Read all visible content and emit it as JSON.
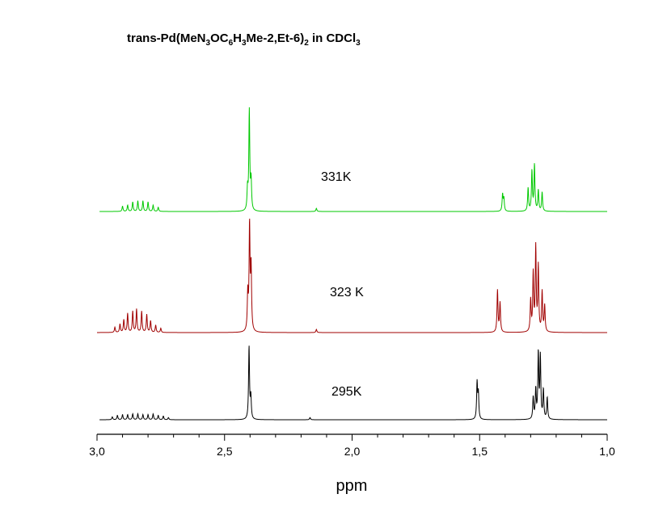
{
  "chart_data": {
    "type": "line",
    "title": {
      "parts": [
        {
          "text": "trans-Pd(MeN",
          "sub": false
        },
        {
          "text": "3",
          "sub": true
        },
        {
          "text": "OC",
          "sub": false
        },
        {
          "text": "6",
          "sub": true
        },
        {
          "text": "H",
          "sub": false
        },
        {
          "text": "3",
          "sub": true
        },
        {
          "text": "Me-2,Et-6)",
          "sub": false
        },
        {
          "text": "2",
          "sub": true
        },
        {
          "text": " in CDCl",
          "sub": false
        },
        {
          "text": "3",
          "sub": true
        }
      ]
    },
    "xlabel": "ppm",
    "xlim": [
      3.0,
      1.0
    ],
    "x_reversed": true,
    "xticks": [
      {
        "value": 3.0,
        "label": "3,0"
      },
      {
        "value": 2.5,
        "label": "2,5"
      },
      {
        "value": 2.0,
        "label": "2,0"
      },
      {
        "value": 1.5,
        "label": "1,5"
      },
      {
        "value": 1.0,
        "label": "1,0"
      }
    ],
    "minor_tick_step": 0.1,
    "grid": false,
    "series": [
      {
        "name": "331K",
        "color": "#00c800",
        "x_range": [
          2.99,
          1.0
        ],
        "peaks": [
          {
            "ppm": 2.9,
            "height": 0.05
          },
          {
            "ppm": 2.88,
            "height": 0.06
          },
          {
            "ppm": 2.86,
            "height": 0.09
          },
          {
            "ppm": 2.84,
            "height": 0.1
          },
          {
            "ppm": 2.82,
            "height": 0.1
          },
          {
            "ppm": 2.8,
            "height": 0.09
          },
          {
            "ppm": 2.78,
            "height": 0.06
          },
          {
            "ppm": 2.76,
            "height": 0.04
          },
          {
            "ppm": 2.403,
            "height": 0.95
          },
          {
            "ppm": 2.396,
            "height": 0.28
          },
          {
            "ppm": 2.41,
            "height": 0.2
          },
          {
            "ppm": 2.14,
            "height": 0.03
          },
          {
            "ppm": 1.41,
            "height": 0.16
          },
          {
            "ppm": 1.405,
            "height": 0.12
          },
          {
            "ppm": 1.31,
            "height": 0.22
          },
          {
            "ppm": 1.295,
            "height": 0.38
          },
          {
            "ppm": 1.285,
            "height": 0.44
          },
          {
            "ppm": 1.27,
            "height": 0.2
          },
          {
            "ppm": 1.255,
            "height": 0.18
          }
        ]
      },
      {
        "name": "323 K",
        "color": "#a00000",
        "x_range": [
          3.0,
          1.0
        ],
        "peaks": [
          {
            "ppm": 2.93,
            "height": 0.05
          },
          {
            "ppm": 2.91,
            "height": 0.08
          },
          {
            "ppm": 2.895,
            "height": 0.12
          },
          {
            "ppm": 2.88,
            "height": 0.18
          },
          {
            "ppm": 2.86,
            "height": 0.2
          },
          {
            "ppm": 2.845,
            "height": 0.22
          },
          {
            "ppm": 2.825,
            "height": 0.2
          },
          {
            "ppm": 2.805,
            "height": 0.17
          },
          {
            "ppm": 2.79,
            "height": 0.11
          },
          {
            "ppm": 2.77,
            "height": 0.07
          },
          {
            "ppm": 2.75,
            "height": 0.04
          },
          {
            "ppm": 2.402,
            "height": 1.0
          },
          {
            "ppm": 2.396,
            "height": 0.6
          },
          {
            "ppm": 2.409,
            "height": 0.35
          },
          {
            "ppm": 2.14,
            "height": 0.03
          },
          {
            "ppm": 1.43,
            "height": 0.4
          },
          {
            "ppm": 1.42,
            "height": 0.28
          },
          {
            "ppm": 1.3,
            "height": 0.3
          },
          {
            "ppm": 1.29,
            "height": 0.55
          },
          {
            "ppm": 1.28,
            "height": 0.8
          },
          {
            "ppm": 1.27,
            "height": 0.62
          },
          {
            "ppm": 1.255,
            "height": 0.38
          },
          {
            "ppm": 1.245,
            "height": 0.25
          }
        ]
      },
      {
        "name": "295K",
        "color": "#000000",
        "x_range": [
          2.99,
          1.0
        ],
        "peaks": [
          {
            "ppm": 2.94,
            "height": 0.04
          },
          {
            "ppm": 2.92,
            "height": 0.06
          },
          {
            "ppm": 2.9,
            "height": 0.07
          },
          {
            "ppm": 2.88,
            "height": 0.07
          },
          {
            "ppm": 2.86,
            "height": 0.08
          },
          {
            "ppm": 2.84,
            "height": 0.08
          },
          {
            "ppm": 2.82,
            "height": 0.07
          },
          {
            "ppm": 2.8,
            "height": 0.07
          },
          {
            "ppm": 2.78,
            "height": 0.08
          },
          {
            "ppm": 2.76,
            "height": 0.06
          },
          {
            "ppm": 2.74,
            "height": 0.05
          },
          {
            "ppm": 2.72,
            "height": 0.03
          },
          {
            "ppm": 2.404,
            "height": 1.0
          },
          {
            "ppm": 2.397,
            "height": 0.3
          },
          {
            "ppm": 2.165,
            "height": 0.03
          },
          {
            "ppm": 1.51,
            "height": 0.5
          },
          {
            "ppm": 1.505,
            "height": 0.35
          },
          {
            "ppm": 1.29,
            "height": 0.3
          },
          {
            "ppm": 1.28,
            "height": 0.4
          },
          {
            "ppm": 1.27,
            "height": 0.9
          },
          {
            "ppm": 1.262,
            "height": 0.85
          },
          {
            "ppm": 1.25,
            "height": 0.4
          },
          {
            "ppm": 1.235,
            "height": 0.3
          }
        ]
      }
    ]
  }
}
